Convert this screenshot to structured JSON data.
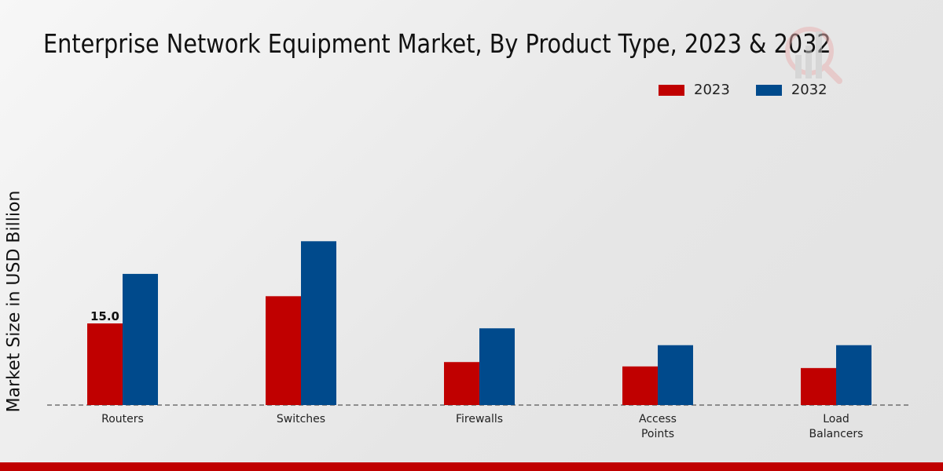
{
  "chart_data": {
    "type": "bar",
    "title": "Enterprise Network Equipment Market, By Product Type, 2023 & 2032",
    "xlabel": "",
    "ylabel": "Market Size in USD Billion",
    "categories": [
      "Routers",
      "Switches",
      "Firewalls",
      "Access Points",
      "Load Balancers"
    ],
    "series": [
      {
        "name": "2023",
        "color": "#c00000",
        "values": [
          15.0,
          20.0,
          7.9,
          7.1,
          6.8
        ]
      },
      {
        "name": "2032",
        "color": "#004a8c",
        "values": [
          24.1,
          30.1,
          14.1,
          11.0,
          11.0
        ]
      }
    ],
    "data_labels": [
      {
        "series": "2023",
        "category": "Routers",
        "text": "15.0"
      }
    ],
    "ylim": [
      0,
      70
    ],
    "grid": false,
    "legend_position": "top-right"
  }
}
